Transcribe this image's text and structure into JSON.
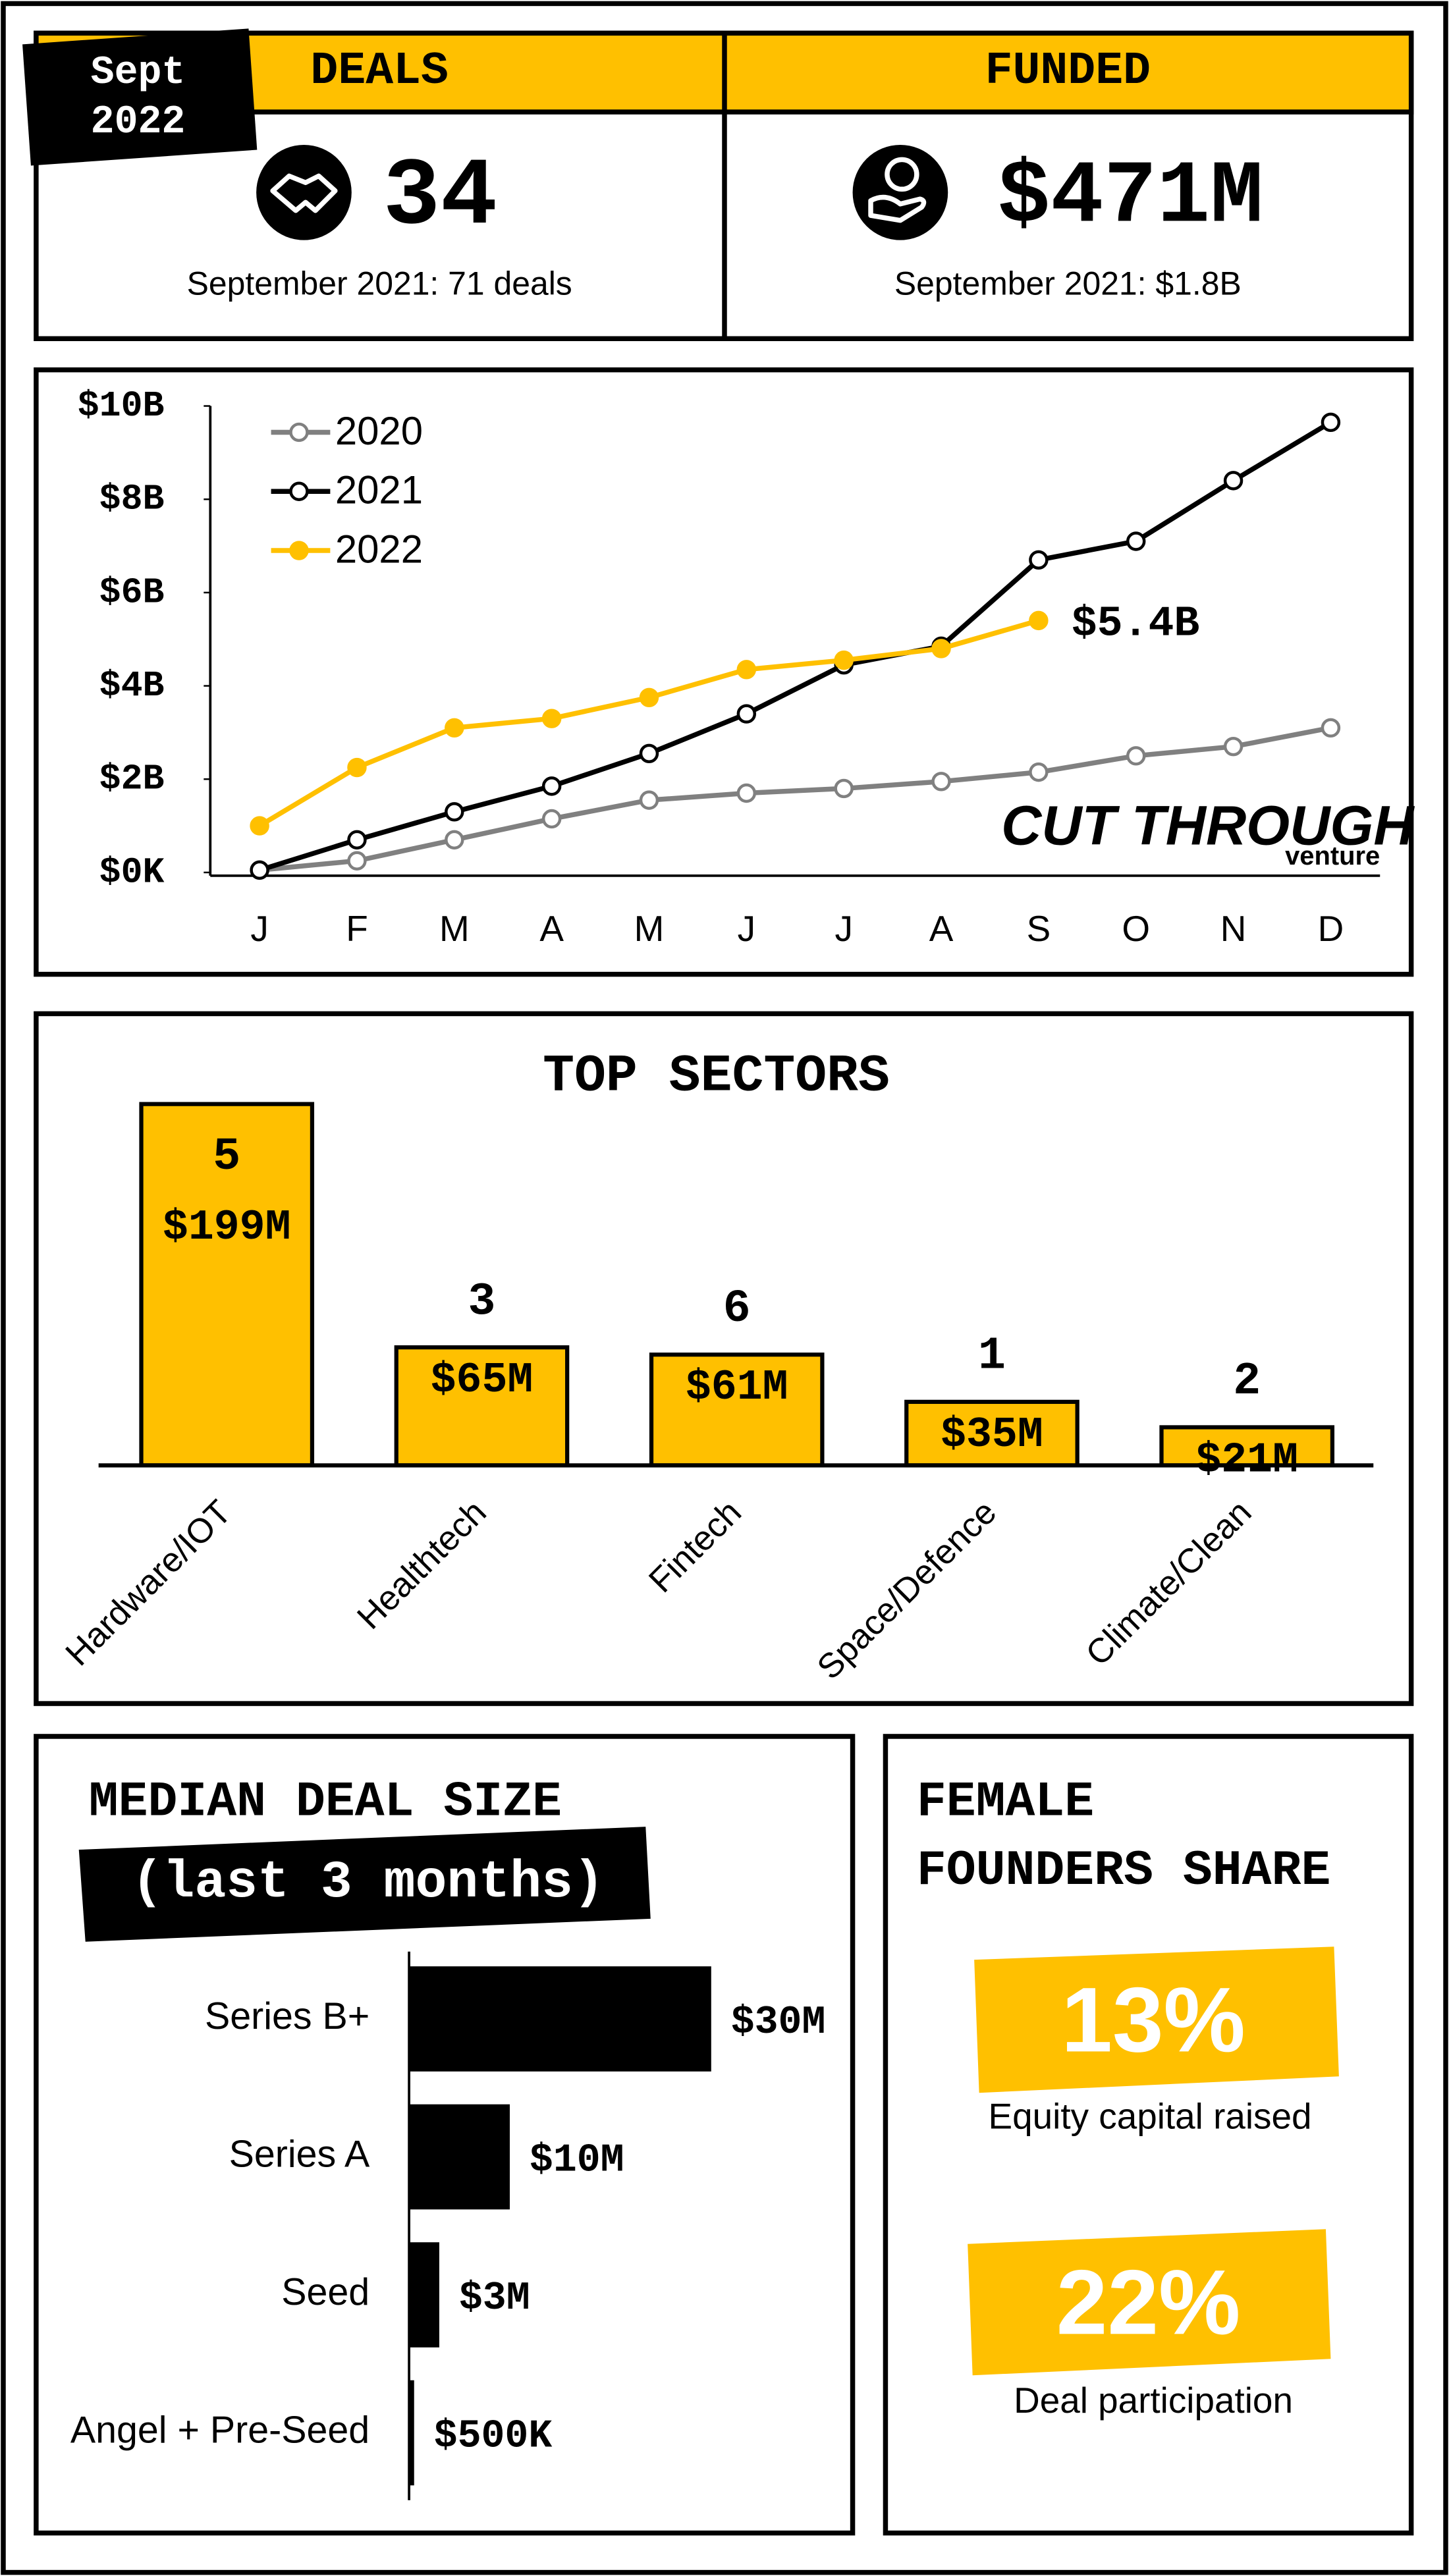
{
  "badge": {
    "month": "Sept",
    "year": "2022"
  },
  "kpis": [
    {
      "title": "DEALS",
      "value": "34",
      "note": "September 2021: 71 deals"
    },
    {
      "title": "FUNDED",
      "value": "$471M",
      "note": "September 2021: $1.8B"
    }
  ],
  "logo": {
    "name": "CUT THROUGH",
    "sub": "venture"
  },
  "chart_data": [
    {
      "type": "line",
      "categories": [
        "J",
        "F",
        "M",
        "A",
        "M",
        "J",
        "J",
        "A",
        "S",
        "O",
        "N",
        "D"
      ],
      "ylim": [
        0,
        10
      ],
      "yticks": [
        {
          "value": 0,
          "label": "$0K"
        },
        {
          "value": 2,
          "label": "$2B"
        },
        {
          "value": 4,
          "label": "$4B"
        },
        {
          "value": 6,
          "label": "$6B"
        },
        {
          "value": 8,
          "label": "$8B"
        },
        {
          "value": 10,
          "label": "$10B"
        }
      ],
      "legend": "top-left",
      "series": [
        {
          "name": "2020",
          "color": "#808080",
          "marker": "hollow",
          "values": [
            0.05,
            0.25,
            0.7,
            1.15,
            1.55,
            1.7,
            1.8,
            1.95,
            2.15,
            2.5,
            2.7,
            3.1
          ]
        },
        {
          "name": "2021",
          "color": "#000000",
          "marker": "hollow",
          "values": [
            0.05,
            0.7,
            1.3,
            1.85,
            2.55,
            3.4,
            4.45,
            4.85,
            6.7,
            7.1,
            8.4,
            9.65
          ]
        },
        {
          "name": "2022",
          "color": "#ffc000",
          "marker": "filled",
          "values": [
            1.0,
            2.25,
            3.1,
            3.3,
            3.75,
            4.35,
            4.55,
            4.8,
            5.4,
            null,
            null,
            null
          ],
          "value_labels": [
            null,
            null,
            null,
            null,
            null,
            null,
            null,
            null,
            "$5.4B",
            null,
            null,
            null
          ]
        }
      ]
    },
    {
      "type": "bar",
      "title": "TOP SECTORS",
      "color": "#ffc000",
      "categories": [
        "Hardware/IOT",
        "Healthtech",
        "Fintech",
        "Space/Defence",
        "Climate/Clean"
      ],
      "values": [
        199,
        65,
        61,
        35,
        21
      ],
      "value_labels": [
        "$199M",
        "$65M",
        "$61M",
        "$35M",
        "$21M"
      ],
      "deal_counts": [
        "5",
        "3",
        "6",
        "1",
        "2"
      ]
    },
    {
      "type": "bar",
      "orientation": "horizontal",
      "title": "MEDIAN DEAL SIZE",
      "subtitle": "(last 3 months)",
      "color": "#000000",
      "categories": [
        "Series B+",
        "Series A",
        "Seed",
        "Angel + Pre-Seed"
      ],
      "values": [
        30,
        10,
        3,
        0.5
      ],
      "value_labels": [
        "$30M",
        "$10M",
        "$3M",
        "$500K"
      ]
    }
  ],
  "female_founders": {
    "title_lines": [
      "FEMALE",
      "FOUNDERS SHARE"
    ],
    "stats": [
      {
        "value": "13%",
        "label": "Equity capital raised"
      },
      {
        "value": "22%",
        "label": "Deal participation"
      }
    ]
  }
}
